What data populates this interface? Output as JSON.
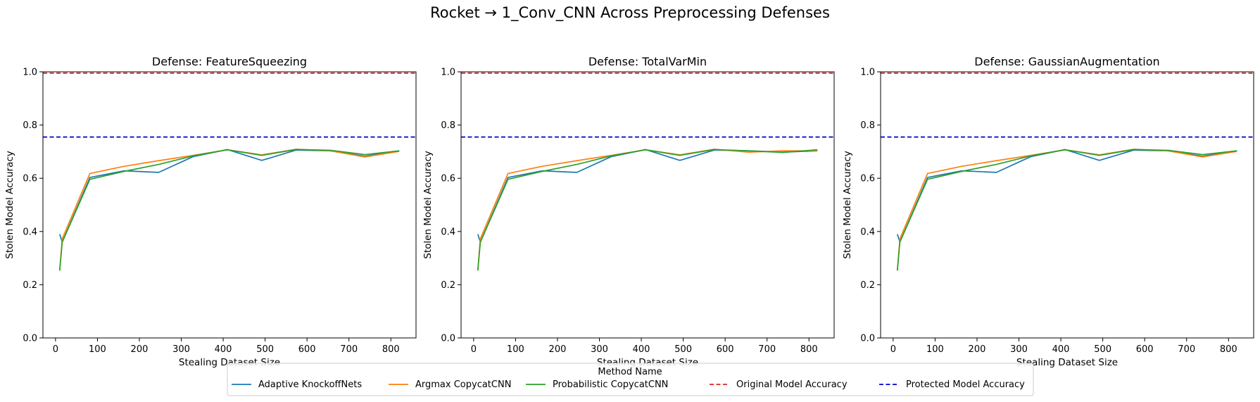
{
  "suptitle": "Rocket → 1_Conv_CNN Across Preprocessing Defenses",
  "colors": {
    "Adaptive KnockoffNets": "#1f77b4",
    "Argmax CopycatCNN": "#ff7f0e",
    "Probabilistic CopycatCNN": "#2ca02c",
    "Original Model Accuracy": "#d62728",
    "Protected Model Accuracy": "#0000cc"
  },
  "legend": {
    "title": "Method Name",
    "placement": "bottom-center",
    "entries": [
      {
        "name": "Adaptive KnockoffNets",
        "style": "solid"
      },
      {
        "name": "Argmax CopycatCNN",
        "style": "solid"
      },
      {
        "name": "Probabilistic CopycatCNN",
        "style": "solid"
      },
      {
        "name": "Original Model Accuracy",
        "style": "dashed"
      },
      {
        "name": "Protected Model Accuracy",
        "style": "dashed"
      }
    ]
  },
  "chart_data": [
    {
      "type": "line",
      "title": "Defense: FeatureSqueezing",
      "xlabel": "Stealing Dataset Size",
      "ylabel": "Stolen Model Accuracy",
      "xlim": [
        -30,
        860
      ],
      "ylim": [
        0,
        1
      ],
      "xticks": [
        0,
        100,
        200,
        300,
        400,
        500,
        600,
        700,
        800
      ],
      "yticks": [
        0.0,
        0.2,
        0.4,
        0.6,
        0.8,
        1.0
      ],
      "grid": false,
      "x": [
        10,
        16,
        82,
        164,
        246,
        328,
        410,
        492,
        574,
        656,
        738,
        820
      ],
      "series": [
        {
          "name": "Adaptive KnockoffNets",
          "values": [
            0.39,
            0.36,
            0.603,
            0.628,
            0.622,
            0.681,
            0.708,
            0.667,
            0.706,
            0.703,
            0.683,
            0.703
          ]
        },
        {
          "name": "Argmax CopycatCNN",
          "values": [
            0.255,
            0.372,
            0.618,
            0.645,
            0.666,
            0.686,
            0.707,
            0.688,
            0.709,
            0.703,
            0.68,
            0.701
          ]
        },
        {
          "name": "Probabilistic CopycatCNN",
          "values": [
            0.253,
            0.36,
            0.596,
            0.626,
            0.652,
            0.684,
            0.707,
            0.686,
            0.708,
            0.705,
            0.689,
            0.703
          ]
        }
      ],
      "hlines": [
        {
          "name": "Original Model Accuracy",
          "y": 0.995
        },
        {
          "name": "Protected Model Accuracy",
          "y": 0.755
        }
      ]
    },
    {
      "type": "line",
      "title": "Defense: TotalVarMin",
      "xlabel": "Stealing Dataset Size",
      "ylabel": "Stolen Model Accuracy",
      "xlim": [
        -30,
        860
      ],
      "ylim": [
        0,
        1
      ],
      "xticks": [
        0,
        100,
        200,
        300,
        400,
        500,
        600,
        700,
        800
      ],
      "yticks": [
        0.0,
        0.2,
        0.4,
        0.6,
        0.8,
        1.0
      ],
      "grid": false,
      "x": [
        10,
        16,
        82,
        164,
        246,
        328,
        410,
        492,
        574,
        656,
        738,
        820
      ],
      "series": [
        {
          "name": "Adaptive KnockoffNets",
          "values": [
            0.39,
            0.36,
            0.603,
            0.628,
            0.622,
            0.681,
            0.708,
            0.667,
            0.706,
            0.703,
            0.698,
            0.703
          ]
        },
        {
          "name": "Argmax CopycatCNN",
          "values": [
            0.255,
            0.372,
            0.618,
            0.645,
            0.666,
            0.686,
            0.707,
            0.688,
            0.709,
            0.698,
            0.703,
            0.703
          ]
        },
        {
          "name": "Probabilistic CopycatCNN",
          "values": [
            0.253,
            0.36,
            0.596,
            0.626,
            0.652,
            0.684,
            0.707,
            0.686,
            0.708,
            0.703,
            0.697,
            0.707
          ]
        }
      ],
      "hlines": [
        {
          "name": "Original Model Accuracy",
          "y": 0.995
        },
        {
          "name": "Protected Model Accuracy",
          "y": 0.755
        }
      ]
    },
    {
      "type": "line",
      "title": "Defense: GaussianAugmentation",
      "xlabel": "Stealing Dataset Size",
      "ylabel": "Stolen Model Accuracy",
      "xlim": [
        -30,
        860
      ],
      "ylim": [
        0,
        1
      ],
      "xticks": [
        0,
        100,
        200,
        300,
        400,
        500,
        600,
        700,
        800
      ],
      "yticks": [
        0.0,
        0.2,
        0.4,
        0.6,
        0.8,
        1.0
      ],
      "grid": false,
      "x": [
        10,
        16,
        82,
        164,
        246,
        328,
        410,
        492,
        574,
        656,
        738,
        820
      ],
      "series": [
        {
          "name": "Adaptive KnockoffNets",
          "values": [
            0.39,
            0.36,
            0.603,
            0.628,
            0.622,
            0.681,
            0.708,
            0.667,
            0.706,
            0.703,
            0.683,
            0.703
          ]
        },
        {
          "name": "Argmax CopycatCNN",
          "values": [
            0.255,
            0.372,
            0.618,
            0.645,
            0.666,
            0.686,
            0.707,
            0.688,
            0.709,
            0.703,
            0.68,
            0.701
          ]
        },
        {
          "name": "Probabilistic CopycatCNN",
          "values": [
            0.253,
            0.36,
            0.596,
            0.626,
            0.652,
            0.684,
            0.707,
            0.686,
            0.708,
            0.705,
            0.689,
            0.703
          ]
        }
      ],
      "hlines": [
        {
          "name": "Original Model Accuracy",
          "y": 0.995
        },
        {
          "name": "Protected Model Accuracy",
          "y": 0.755
        }
      ]
    }
  ]
}
